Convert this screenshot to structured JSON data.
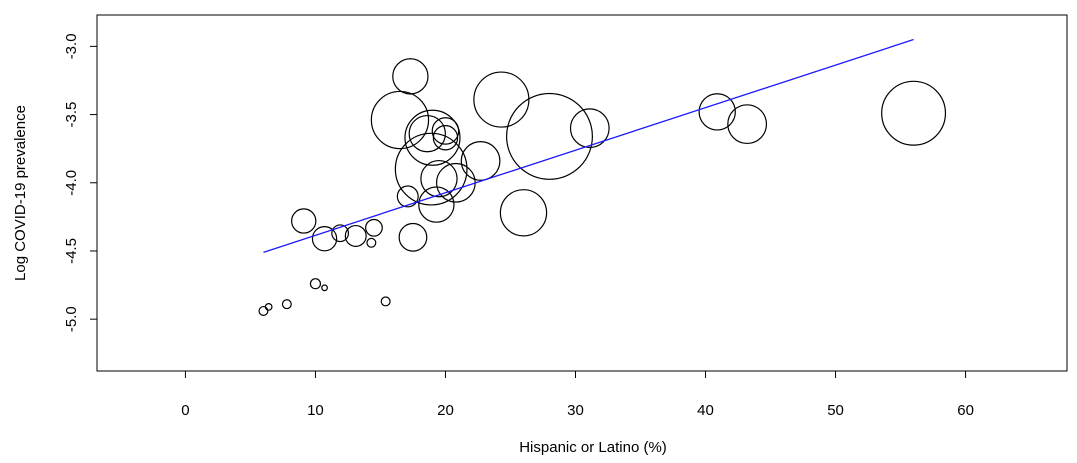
{
  "chart_data": {
    "type": "scatter",
    "title": "",
    "xlabel": "Hispanic or Latino (%)",
    "ylabel": "Log COVID-19 prevalence",
    "xlim": [
      -6.8,
      67.8
    ],
    "ylim": [
      -5.38,
      -2.77
    ],
    "xticks": [
      0,
      10,
      20,
      30,
      40,
      50,
      60
    ],
    "xtick_labels": [
      "0",
      "10",
      "20",
      "30",
      "40",
      "50",
      "60"
    ],
    "yticks": [
      -3.0,
      -3.5,
      -4.0,
      -4.5,
      -5.0
    ],
    "ytick_labels": [
      "-3.0",
      "-3.5",
      "-4.0",
      "-4.5",
      "-5.0"
    ],
    "grid": false,
    "legend": "none",
    "point_style": "open circles, size proportional to weight",
    "points": [
      {
        "x": 6.0,
        "y": -4.94,
        "size": 0.8
      },
      {
        "x": 6.4,
        "y": -4.91,
        "size": 0.6
      },
      {
        "x": 7.8,
        "y": -4.89,
        "size": 0.8
      },
      {
        "x": 10.0,
        "y": -4.74,
        "size": 0.9
      },
      {
        "x": 10.7,
        "y": -4.77,
        "size": 0.5
      },
      {
        "x": 15.4,
        "y": -4.87,
        "size": 0.8
      },
      {
        "x": 14.3,
        "y": -4.44,
        "size": 0.8
      },
      {
        "x": 9.1,
        "y": -4.28,
        "size": 2.2
      },
      {
        "x": 10.7,
        "y": -4.41,
        "size": 2.2
      },
      {
        "x": 11.9,
        "y": -4.37,
        "size": 1.5
      },
      {
        "x": 13.1,
        "y": -4.39,
        "size": 1.9
      },
      {
        "x": 14.5,
        "y": -4.33,
        "size": 1.5
      },
      {
        "x": 17.5,
        "y": -4.4,
        "size": 2.5
      },
      {
        "x": 17.1,
        "y": -4.1,
        "size": 1.9
      },
      {
        "x": 17.3,
        "y": -3.22,
        "size": 3.2
      },
      {
        "x": 16.5,
        "y": -3.54,
        "size": 5.2
      },
      {
        "x": 18.6,
        "y": -3.64,
        "size": 3.3
      },
      {
        "x": 19.0,
        "y": -3.67,
        "size": 5.0
      },
      {
        "x": 20.0,
        "y": -3.62,
        "size": 2.4
      },
      {
        "x": 20.0,
        "y": -3.67,
        "size": 2.2
      },
      {
        "x": 18.9,
        "y": -3.9,
        "size": 6.5
      },
      {
        "x": 19.5,
        "y": -3.97,
        "size": 3.3
      },
      {
        "x": 19.3,
        "y": -4.16,
        "size": 3.2
      },
      {
        "x": 20.8,
        "y": -4.0,
        "size": 3.5
      },
      {
        "x": 22.7,
        "y": -3.84,
        "size": 3.5
      },
      {
        "x": 24.3,
        "y": -3.39,
        "size": 5.0
      },
      {
        "x": 26.0,
        "y": -4.22,
        "size": 4.2
      },
      {
        "x": 28.0,
        "y": -3.66,
        "size": 7.8
      },
      {
        "x": 31.1,
        "y": -3.6,
        "size": 3.5
      },
      {
        "x": 40.9,
        "y": -3.48,
        "size": 3.3
      },
      {
        "x": 43.2,
        "y": -3.57,
        "size": 3.5
      },
      {
        "x": 56.0,
        "y": -3.49,
        "size": 5.8
      }
    ],
    "regression_line": {
      "x": [
        6.0,
        56.0
      ],
      "y": [
        -4.51,
        -2.95
      ],
      "color": "#1a1aff"
    }
  }
}
